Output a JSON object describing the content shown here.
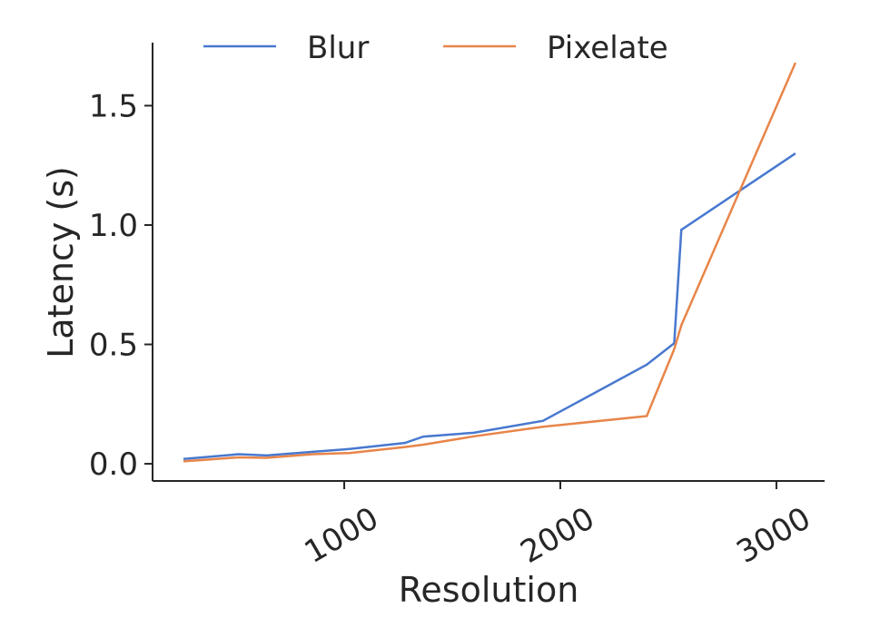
{
  "chart_data": {
    "type": "line",
    "x_label": "Resolution",
    "y_label": "Latency (s)",
    "xlim": [
      113,
      3223
    ],
    "ylim": [
      -0.072,
      1.764
    ],
    "xticks": [
      1000,
      2000,
      3000
    ],
    "yticks": [
      {
        "value": 0,
        "label": "0.0"
      },
      {
        "value": 0.5,
        "label": "0.5"
      },
      {
        "value": 1,
        "label": "1.0"
      },
      {
        "value": 1.5,
        "label": "1.5"
      }
    ],
    "x": [
      256,
      512,
      640,
      854,
      1024,
      1280,
      1366,
      1600,
      1920,
      2400,
      2527,
      2560,
      3088
    ],
    "series": [
      {
        "name": "Blur",
        "color": "#4878cf",
        "values": [
          0.02,
          0.04,
          0.035,
          0.05,
          0.062,
          0.087,
          0.114,
          0.13,
          0.18,
          0.415,
          0.505,
          0.98,
          1.3
        ]
      },
      {
        "name": "Pixelate",
        "color": "#e8854a",
        "values": [
          0.01,
          0.027,
          0.025,
          0.04,
          0.045,
          0.07,
          0.08,
          0.115,
          0.155,
          0.2,
          0.48,
          0.58,
          1.68
        ]
      }
    ],
    "legend": "top"
  }
}
